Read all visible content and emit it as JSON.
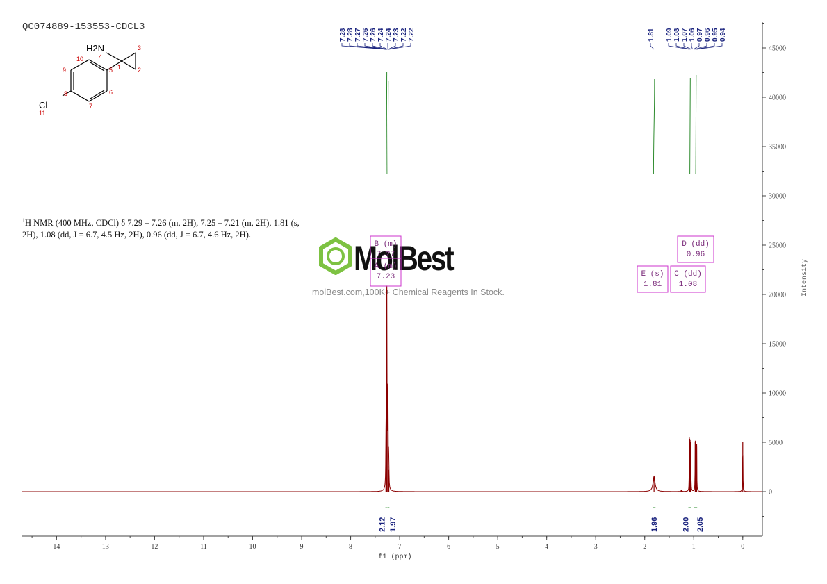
{
  "header": {
    "sample_id": "QC074889-153553-CDCL3",
    "nmr_description": "H NMR (400 MHz, CDCl) δ 7.29 – 7.26 (m, 2H), 7.25 – 7.21 (m, 2H), 1.81 (s, 2H), 1.08 (dd, J = 6.7, 4.5 Hz, 2H), 0.96 (dd, J = 6.7, 4.6 Hz, 2H)."
  },
  "structure": {
    "amine_label": "H2N",
    "chloro_label": "Cl",
    "atom_numbers": [
      "1",
      "2",
      "3",
      "4",
      "5",
      "6",
      "7",
      "8",
      "9",
      "10",
      "11"
    ]
  },
  "watermark": {
    "name": "MolBest",
    "tagline": "molBest.com,100K+ Chemical Reagents In Stock."
  },
  "chart_data": {
    "type": "line",
    "title": "",
    "xlabel": "f1 (ppm)",
    "ylabel": "Intensity",
    "xlim": [
      14.7,
      -0.4
    ],
    "ylim": [
      -4500,
      47500
    ],
    "x_reversed": true,
    "x_ticks": [
      14,
      13,
      12,
      11,
      10,
      9,
      8,
      7,
      6,
      5,
      4,
      3,
      2,
      1,
      0
    ],
    "y_ticks": [
      0,
      5000,
      10000,
      15000,
      20000,
      25000,
      30000,
      35000,
      40000,
      45000
    ],
    "grid": false,
    "series": [
      {
        "peaks": [
          {
            "ppm": 7.28,
            "height": 3400,
            "width": 0.004
          },
          {
            "ppm": 7.275,
            "height": 2800,
            "width": 0.004
          },
          {
            "ppm": 7.265,
            "height": 14200,
            "width": 0.005
          },
          {
            "ppm": 7.26,
            "height": 12000,
            "width": 0.005
          },
          {
            "ppm": 7.24,
            "height": 8600,
            "width": 0.005
          },
          {
            "ppm": 7.235,
            "height": 2600,
            "width": 0.004
          },
          {
            "ppm": 7.225,
            "height": 2200,
            "width": 0.004
          },
          {
            "ppm": 7.22,
            "height": 1600,
            "width": 0.004
          },
          {
            "ppm": 1.81,
            "height": 1550,
            "width": 0.025
          },
          {
            "ppm": 1.09,
            "height": 5000,
            "width": 0.003
          },
          {
            "ppm": 1.08,
            "height": 4500,
            "width": 0.003
          },
          {
            "ppm": 1.07,
            "height": 4200,
            "width": 0.003
          },
          {
            "ppm": 1.06,
            "height": 4800,
            "width": 0.003
          },
          {
            "ppm": 0.97,
            "height": 5000,
            "width": 0.003
          },
          {
            "ppm": 0.96,
            "height": 4400,
            "width": 0.003
          },
          {
            "ppm": 0.95,
            "height": 4300,
            "width": 0.003
          },
          {
            "ppm": 0.94,
            "height": 4800,
            "width": 0.003
          },
          {
            "ppm": 1.25,
            "height": 150,
            "width": 0.01
          },
          {
            "ppm": 0.0,
            "height": 5000,
            "width": 0.004
          }
        ]
      }
    ],
    "peak_labels_left": [
      "7.28",
      "7.28",
      "7.27",
      "7.26",
      "7.26",
      "7.24",
      "7.24",
      "7.23",
      "7.22",
      "7.22"
    ],
    "peak_labels_right_single": [
      "1.81"
    ],
    "peak_labels_right_group": [
      "1.09",
      "1.08",
      "1.07",
      "1.06",
      "0.97",
      "0.96",
      "0.95",
      "0.94"
    ],
    "integrals": [
      {
        "from": 7.29,
        "to": 7.26,
        "value": "2.12"
      },
      {
        "from": 7.25,
        "to": 7.21,
        "value": "1.97"
      },
      {
        "from": 1.84,
        "to": 1.78,
        "value": "1.96"
      },
      {
        "from": 1.11,
        "to": 1.05,
        "value": "2.00"
      },
      {
        "from": 0.99,
        "to": 0.93,
        "value": "2.05"
      }
    ],
    "multiplet_boxes": [
      {
        "label": "B (m)",
        "shift": "7.27"
      },
      {
        "label": "A (m)",
        "shift": "7.23"
      },
      {
        "label": "E (s)",
        "shift": "1.81"
      },
      {
        "label": "C (dd)",
        "shift": "1.08"
      },
      {
        "label": "D (dd)",
        "shift": "0.96"
      }
    ],
    "colors": {
      "spectrum": "#8b0000",
      "integral_curve": "#2e8b2e",
      "peak_label": "#1a237e",
      "multiplet_box": "#cc33cc",
      "axis": "#444444",
      "watermark_logo": "#7dc242"
    }
  }
}
